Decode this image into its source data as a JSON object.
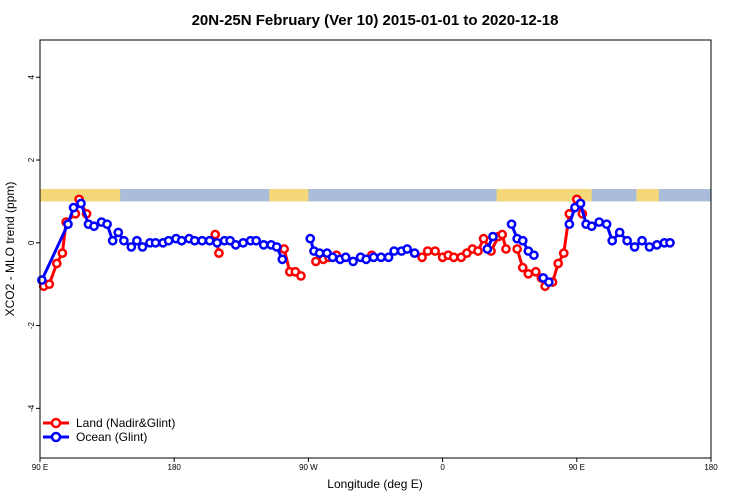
{
  "chart_data": {
    "type": "line",
    "title": "20N-25N February (Ver 10)   2015-01-01 to 2020-12-18",
    "xlabel": "Longitude (deg E)",
    "ylabel": "XCO2 - MLO trend (ppm)",
    "xlim": [
      90,
      450
    ],
    "ylim": [
      -5.2,
      4.9
    ],
    "x_ticks": [
      90,
      162,
      234,
      306,
      378,
      450
    ],
    "x_tick_labels": [
      "90 E",
      "180",
      "90 W",
      "0",
      "90 E",
      "180"
    ],
    "y_ticks": [
      -4,
      -2,
      0,
      2,
      4
    ],
    "y_tick_labels": [
      "-4",
      "-2",
      "0",
      "2",
      "4"
    ],
    "grid": false,
    "legend_position": "bottom-left",
    "colors": {
      "land": "#ff0000",
      "ocean": "#0000ff",
      "map_land": "#f5d87a",
      "map_ocean": "#a9bcd9"
    },
    "map_strip": {
      "y_top": 1.3,
      "y_bottom": 1.0,
      "land_ranges": [
        [
          90,
          133
        ],
        [
          213,
          234
        ],
        [
          335,
          386
        ],
        [
          410,
          422
        ]
      ]
    },
    "series": [
      {
        "name": "Land (Nadir&Glint)",
        "color": "#ff0000",
        "segments": [
          [
            [
              92,
              -1.05
            ],
            [
              95,
              -1.0
            ],
            [
              99,
              -0.5
            ],
            [
              102,
              -0.25
            ],
            [
              104,
              0.5
            ],
            [
              109,
              0.7
            ],
            [
              111,
              1.05
            ],
            [
              115,
              0.7
            ]
          ],
          [
            [
              184,
              0.2
            ],
            [
              186,
              -0.25
            ]
          ],
          [
            [
              221,
              -0.15
            ],
            [
              224,
              -0.7
            ],
            [
              227,
              -0.7
            ],
            [
              230,
              -0.8
            ]
          ],
          [
            [
              238,
              -0.45
            ],
            [
              242,
              -0.4
            ],
            [
              245,
              -0.35
            ],
            [
              249,
              -0.3
            ]
          ],
          [
            [
              268,
              -0.3
            ]
          ],
          [
            [
              295,
              -0.35
            ],
            [
              298,
              -0.2
            ],
            [
              302,
              -0.2
            ],
            [
              306,
              -0.35
            ],
            [
              309,
              -0.3
            ],
            [
              312,
              -0.35
            ],
            [
              316,
              -0.35
            ],
            [
              319,
              -0.25
            ],
            [
              322,
              -0.15
            ],
            [
              325,
              -0.2
            ],
            [
              328,
              0.1
            ],
            [
              332,
              -0.2
            ],
            [
              336,
              0.15
            ],
            [
              338,
              0.2
            ],
            [
              340,
              -0.15
            ]
          ],
          [
            [
              346,
              -0.15
            ],
            [
              349,
              -0.6
            ],
            [
              352,
              -0.75
            ],
            [
              356,
              -0.7
            ],
            [
              359,
              -0.85
            ]
          ],
          [
            [
              361,
              -1.05
            ],
            [
              365,
              -0.95
            ],
            [
              368,
              -0.5
            ],
            [
              371,
              -0.25
            ],
            [
              374,
              0.7
            ],
            [
              378,
              1.05
            ],
            [
              381,
              0.7
            ]
          ]
        ]
      },
      {
        "name": "Ocean (Glint)",
        "color": "#0000ff",
        "segments": [
          [
            [
              91,
              -0.9
            ],
            [
              105,
              0.45
            ],
            [
              108,
              0.85
            ],
            [
              112,
              0.95
            ],
            [
              116,
              0.45
            ],
            [
              119,
              0.4
            ],
            [
              123,
              0.5
            ],
            [
              126,
              0.45
            ],
            [
              129,
              0.05
            ],
            [
              132,
              0.25
            ],
            [
              135,
              0.05
            ],
            [
              139,
              -0.1
            ],
            [
              142,
              0.05
            ],
            [
              145,
              -0.1
            ],
            [
              149,
              0.0
            ],
            [
              152,
              0.0
            ],
            [
              156,
              0.0
            ],
            [
              159,
              0.05
            ],
            [
              163,
              0.1
            ],
            [
              166,
              0.05
            ],
            [
              170,
              0.1
            ],
            [
              173,
              0.05
            ],
            [
              177,
              0.05
            ],
            [
              181,
              0.05
            ],
            [
              185,
              0.0
            ],
            [
              189,
              0.05
            ],
            [
              192,
              0.05
            ],
            [
              195,
              -0.05
            ],
            [
              199,
              0.0
            ],
            [
              203,
              0.05
            ],
            [
              206,
              0.05
            ],
            [
              210,
              -0.05
            ],
            [
              214,
              -0.05
            ],
            [
              217,
              -0.1
            ],
            [
              220,
              -0.4
            ]
          ],
          [
            [
              235,
              0.1
            ],
            [
              237,
              -0.2
            ],
            [
              240,
              -0.25
            ],
            [
              244,
              -0.25
            ],
            [
              247,
              -0.35
            ],
            [
              251,
              -0.4
            ],
            [
              254,
              -0.35
            ],
            [
              258,
              -0.45
            ],
            [
              262,
              -0.35
            ],
            [
              265,
              -0.4
            ],
            [
              269,
              -0.35
            ],
            [
              273,
              -0.35
            ],
            [
              277,
              -0.35
            ],
            [
              280,
              -0.2
            ],
            [
              284,
              -0.2
            ],
            [
              287,
              -0.15
            ],
            [
              291,
              -0.25
            ]
          ],
          [
            [
              330,
              -0.15
            ],
            [
              333,
              0.15
            ]
          ],
          [
            [
              343,
              0.45
            ],
            [
              346,
              0.1
            ],
            [
              349,
              0.05
            ],
            [
              352,
              -0.2
            ],
            [
              355,
              -0.3
            ]
          ],
          [
            [
              360,
              -0.85
            ],
            [
              363,
              -0.95
            ]
          ],
          [
            [
              374,
              0.45
            ],
            [
              377,
              0.85
            ],
            [
              380,
              0.95
            ],
            [
              383,
              0.45
            ],
            [
              386,
              0.4
            ],
            [
              390,
              0.5
            ],
            [
              394,
              0.45
            ],
            [
              397,
              0.05
            ],
            [
              401,
              0.25
            ],
            [
              405,
              0.05
            ],
            [
              409,
              -0.1
            ],
            [
              413,
              0.05
            ],
            [
              417,
              -0.1
            ],
            [
              421,
              -0.05
            ],
            [
              425,
              0.0
            ],
            [
              428,
              0.0
            ]
          ]
        ]
      }
    ]
  }
}
